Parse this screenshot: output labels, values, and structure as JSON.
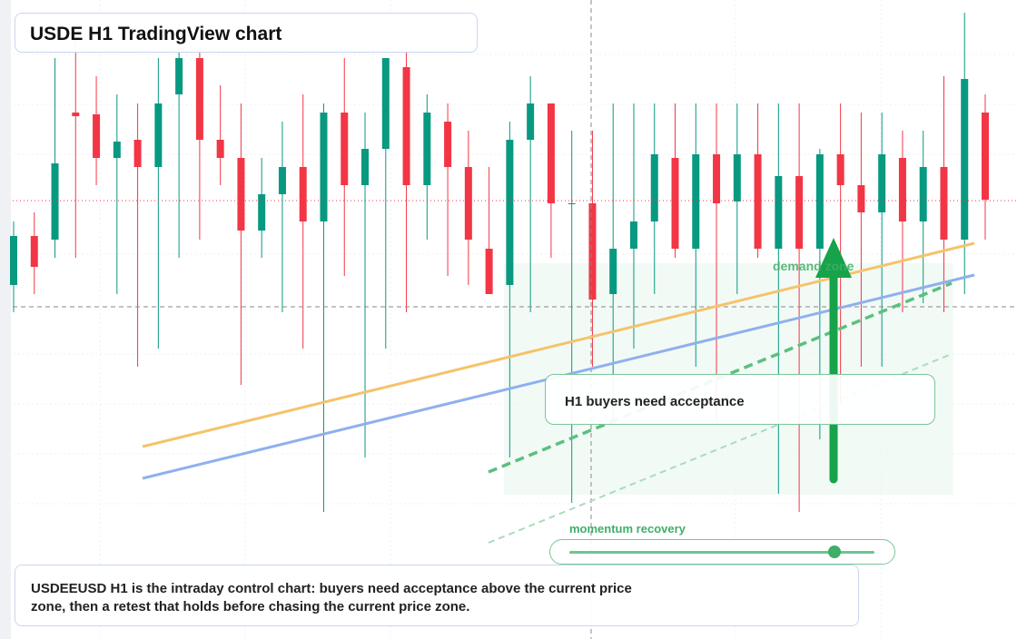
{
  "chart_data": {
    "type": "candlestick",
    "title": "USDE H1 TradingView chart",
    "up_color": "#089981",
    "down_color": "#f23645",
    "ylim": [
      0,
      704
    ],
    "open": [
      390,
      444,
      440,
      580,
      578,
      530,
      550,
      520,
      600,
      640,
      550,
      530,
      450,
      490,
      520,
      460,
      580,
      500,
      540,
      630,
      500,
      570,
      520,
      430,
      390,
      550,
      590,
      480,
      480,
      380,
      430,
      460,
      530,
      430,
      534,
      482,
      534,
      430,
      510,
      430,
      534,
      500,
      470,
      530,
      460,
      520,
      440,
      580
    ],
    "high": [
      460,
      470,
      640,
      660,
      620,
      600,
      590,
      640,
      680,
      650,
      610,
      590,
      530,
      570,
      600,
      590,
      640,
      580,
      640,
      650,
      600,
      590,
      560,
      520,
      570,
      620,
      590,
      560,
      560,
      590,
      590,
      590,
      590,
      590,
      590,
      590,
      590,
      590,
      590,
      540,
      590,
      580,
      580,
      560,
      560,
      620,
      690,
      600
    ],
    "low": [
      360,
      380,
      420,
      420,
      500,
      380,
      300,
      320,
      420,
      440,
      500,
      280,
      420,
      360,
      320,
      140,
      400,
      200,
      320,
      360,
      440,
      400,
      390,
      380,
      200,
      360,
      420,
      150,
      300,
      240,
      320,
      380,
      420,
      300,
      240,
      380,
      420,
      160,
      140,
      220,
      260,
      300,
      300,
      360,
      370,
      360,
      380,
      440
    ],
    "close": [
      444,
      410,
      524,
      576,
      530,
      548,
      520,
      590,
      640,
      550,
      530,
      450,
      490,
      520,
      460,
      580,
      500,
      540,
      640,
      500,
      580,
      520,
      440,
      380,
      550,
      590,
      480,
      480,
      374,
      430,
      460,
      534,
      430,
      534,
      480,
      534,
      430,
      510,
      430,
      534,
      500,
      470,
      534,
      460,
      520,
      440,
      617,
      484
    ],
    "annotations": {
      "zone_label": "demand zone",
      "callout": "H1 buyers need acceptance",
      "slider_label": "momentum recovery",
      "note": "USDEEUSD H1 is the intraday control chart: buyers need acceptance above the current price zone, then a retest that holds before chasing the current price zone."
    }
  }
}
